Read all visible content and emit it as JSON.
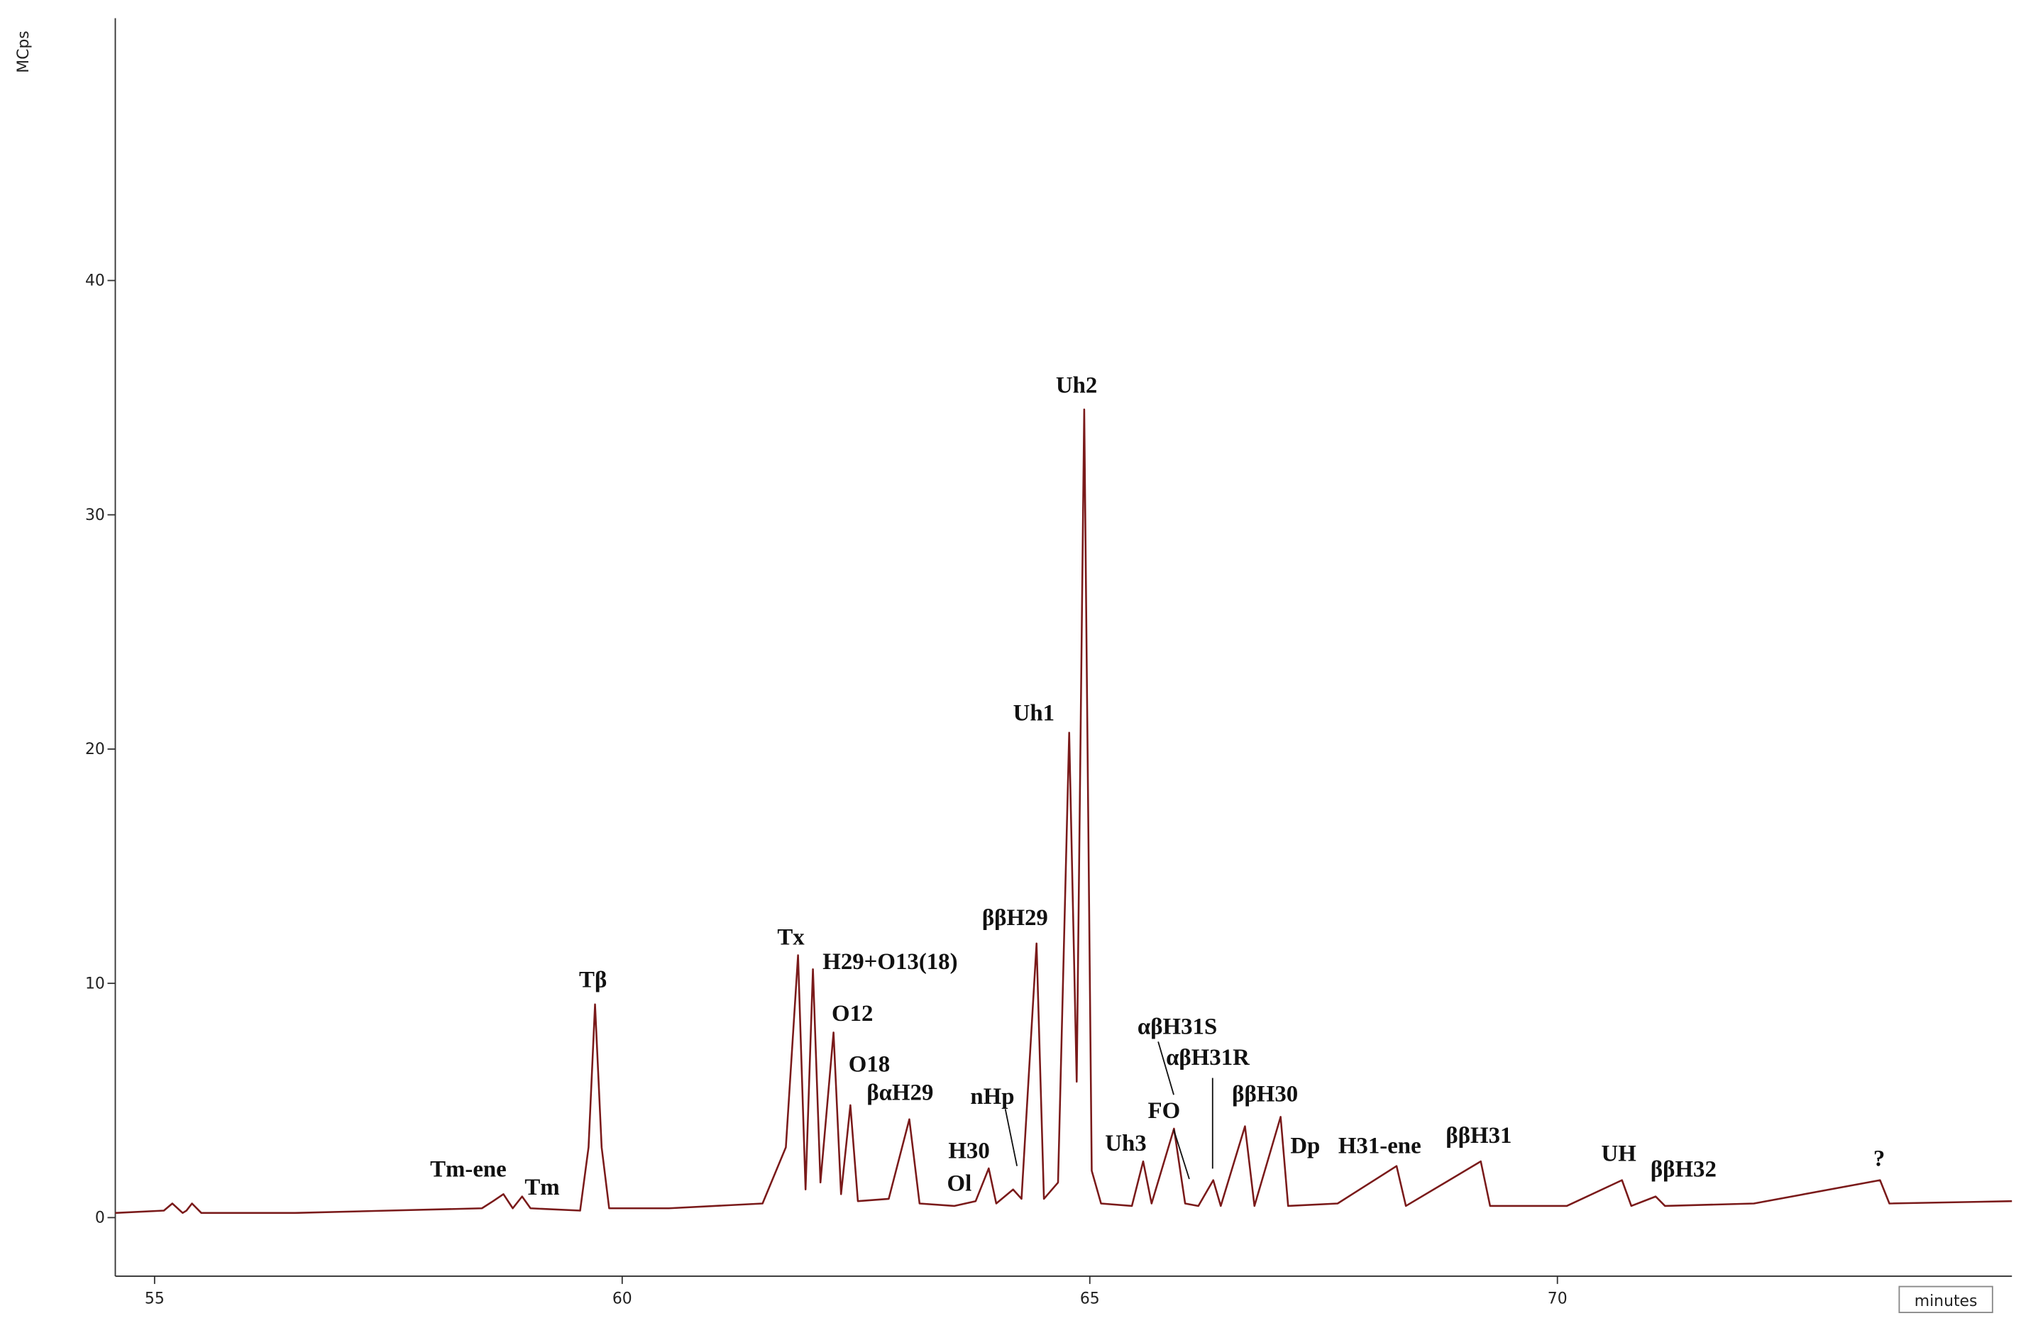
{
  "chart_data": {
    "type": "line",
    "ylabel": "MCps",
    "xlabel": "minutes",
    "color": "#7a1a1a",
    "xlim": [
      54.58,
      74.86
    ],
    "ylim": [
      -2.5,
      51.2
    ],
    "xticks": [
      55,
      60,
      65,
      70
    ],
    "yticks": [
      0,
      10,
      20,
      30,
      40
    ],
    "x": [
      54.58,
      55.1,
      55.19,
      55.3,
      55.34,
      55.4,
      55.5,
      56.5,
      57.5,
      58.5,
      58.62,
      58.73,
      58.83,
      58.93,
      59.02,
      59.55,
      59.64,
      59.71,
      59.78,
      59.86,
      60.5,
      61.5,
      61.75,
      61.88,
      61.96,
      62.04,
      62.12,
      62.26,
      62.34,
      62.44,
      62.52,
      62.85,
      63.07,
      63.18,
      63.55,
      63.78,
      63.92,
      64.0,
      64.18,
      64.27,
      64.43,
      64.51,
      64.66,
      64.78,
      64.86,
      64.94,
      65.02,
      65.12,
      65.45,
      65.57,
      65.66,
      65.9,
      66.02,
      66.16,
      66.32,
      66.4,
      66.66,
      66.76,
      67.04,
      67.12,
      67.65,
      68.28,
      68.38,
      69.18,
      69.28,
      70.1,
      70.69,
      70.79,
      71.05,
      71.15,
      72.1,
      73.45,
      73.55,
      74.86
    ],
    "values": [
      0.2,
      0.3,
      0.6,
      0.2,
      0.3,
      0.6,
      0.2,
      0.2,
      0.3,
      0.4,
      0.7,
      1.0,
      0.4,
      0.9,
      0.4,
      0.3,
      3.0,
      9.1,
      3.0,
      0.4,
      0.4,
      0.6,
      3.0,
      11.2,
      1.2,
      10.6,
      1.5,
      7.9,
      1.0,
      4.8,
      0.7,
      0.8,
      4.2,
      0.6,
      0.5,
      0.7,
      2.1,
      0.6,
      1.2,
      0.8,
      11.7,
      0.8,
      1.5,
      20.7,
      5.8,
      34.5,
      2.0,
      0.6,
      0.5,
      2.4,
      0.6,
      3.8,
      0.6,
      0.5,
      1.6,
      0.5,
      3.9,
      0.5,
      4.3,
      0.5,
      0.6,
      2.2,
      0.5,
      2.4,
      0.5,
      0.5,
      1.6,
      0.5,
      0.9,
      0.5,
      0.6,
      1.6,
      0.6,
      0.7
    ],
    "annotations": [
      "Tm-ene",
      "Tm",
      "Tβ",
      "Tx",
      "H29+O13(18)",
      "O12",
      "O18",
      "βαH29",
      "nHp",
      "H30",
      "Ol",
      "ββH29",
      "Uh1",
      "Uh2",
      "Uh3",
      "αβH31S",
      "αβH31R",
      "FO",
      "ββH30",
      "Dp",
      "H31-ene",
      "ββH31",
      "UH",
      "ββH32",
      "?"
    ]
  }
}
